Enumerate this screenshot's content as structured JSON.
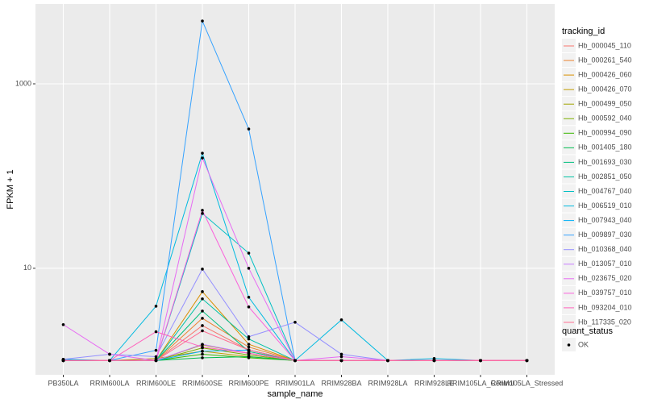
{
  "chart_data": {
    "type": "line",
    "x_label": "sample_name",
    "y_label": "FPKM + 1",
    "categories": [
      "PB350LA",
      "RRIM600LA",
      "RRIM600LE",
      "RRIM600SE",
      "RRIM600PE",
      "RRIM901LA",
      "RRIM928BA",
      "RRIM928LA",
      "RRIM928LE",
      "RRIM105LA_Control",
      "RRIM105LA_Stressed"
    ],
    "y_log": true,
    "ylim": [
      0.7,
      7330
    ],
    "yticks": [
      10,
      1000
    ],
    "grid": true,
    "legend_title": "tracking_id",
    "point_color": "#000000",
    "shape_legend": {
      "title": "quant_status",
      "labels": [
        "OK"
      ]
    },
    "series": [
      {
        "name": "Hb_000045_110",
        "color": "#F8766D",
        "values": [
          1,
          1,
          1,
          2.39,
          1.3,
          1,
          1,
          1,
          1,
          1,
          1
        ]
      },
      {
        "name": "Hb_000261_540",
        "color": "#EA8331",
        "values": [
          1,
          1,
          1,
          2.87,
          1.4,
          1,
          1,
          1,
          1,
          1,
          1
        ]
      },
      {
        "name": "Hb_000426_060",
        "color": "#D89000",
        "values": [
          1,
          1,
          1,
          5.58,
          1.5,
          1,
          1,
          1,
          1,
          1,
          1
        ]
      },
      {
        "name": "Hb_000426_070",
        "color": "#C09B00",
        "values": [
          1,
          1,
          1.05,
          1.26,
          1.1,
          1,
          1,
          1,
          1,
          1,
          1
        ]
      },
      {
        "name": "Hb_000499_050",
        "color": "#A3A500",
        "values": [
          1,
          1,
          1,
          1.48,
          1.2,
          1,
          1,
          1,
          1,
          1,
          1
        ]
      },
      {
        "name": "Hb_000592_040",
        "color": "#7CAE00",
        "values": [
          1,
          1,
          1,
          1.37,
          1.15,
          1,
          1,
          1,
          1,
          1,
          1
        ]
      },
      {
        "name": "Hb_000994_090",
        "color": "#39B600",
        "values": [
          1,
          1,
          1,
          1.17,
          1.07,
          1,
          1,
          1,
          1,
          1,
          1
        ]
      },
      {
        "name": "Hb_001405_180",
        "color": "#00BB4E",
        "values": [
          1,
          1,
          1,
          1.07,
          1.1,
          1,
          1,
          1,
          1,
          1,
          1
        ]
      },
      {
        "name": "Hb_001693_030",
        "color": "#00BF7D",
        "values": [
          1,
          1,
          1,
          3.44,
          1.25,
          1,
          1,
          1,
          1,
          1,
          1
        ]
      },
      {
        "name": "Hb_002851_050",
        "color": "#00C1A3",
        "values": [
          1,
          1,
          1,
          4.66,
          1.71,
          1,
          1,
          1,
          1,
          1,
          1
        ]
      },
      {
        "name": "Hb_004767_040",
        "color": "#00BFC4",
        "values": [
          1,
          1,
          1,
          39.3,
          14.6,
          1,
          1,
          1,
          1,
          1,
          1
        ]
      },
      {
        "name": "Hb_006519_010",
        "color": "#00BAE0",
        "values": [
          1.03,
          1,
          3.88,
          177,
          4.85,
          1,
          2.76,
          1,
          1.05,
          1,
          1
        ]
      },
      {
        "name": "Hb_007943_040",
        "color": "#00B0F6",
        "values": [
          1,
          1,
          1,
          1.26,
          1.3,
          1,
          1,
          1,
          1,
          1,
          1
        ]
      },
      {
        "name": "Hb_009897_030",
        "color": "#35A2FF",
        "values": [
          1,
          1,
          1.29,
          4800,
          324,
          1,
          1,
          1,
          1,
          1,
          1
        ]
      },
      {
        "name": "Hb_010368_040",
        "color": "#9590FF",
        "values": [
          1.03,
          1.17,
          1.1,
          9.8,
          1.81,
          2.6,
          1.17,
          1,
          1,
          1,
          1
        ]
      },
      {
        "name": "Hb_013057_010",
        "color": "#C77CFF",
        "values": [
          1,
          1,
          1,
          1.5,
          1.2,
          1,
          1,
          1,
          1,
          1,
          1
        ]
      },
      {
        "name": "Hb_023675_020",
        "color": "#E76BF3",
        "values": [
          2.45,
          1.17,
          1,
          157,
          10,
          1,
          1.1,
          1,
          1,
          1,
          1
        ]
      },
      {
        "name": "Hb_039757_010",
        "color": "#FA62DB",
        "values": [
          1,
          1,
          1,
          42.5,
          3.81,
          1,
          1,
          1,
          1,
          1,
          1
        ]
      },
      {
        "name": "Hb_093204_010",
        "color": "#FF62BC",
        "values": [
          1,
          1,
          2.05,
          1.4,
          1.2,
          1,
          1,
          1,
          1,
          1,
          1
        ]
      },
      {
        "name": "Hb_117335_020",
        "color": "#FF6C91",
        "values": [
          1,
          1,
          1,
          2.1,
          1.3,
          1,
          1,
          1,
          1,
          1,
          1
        ]
      }
    ]
  }
}
